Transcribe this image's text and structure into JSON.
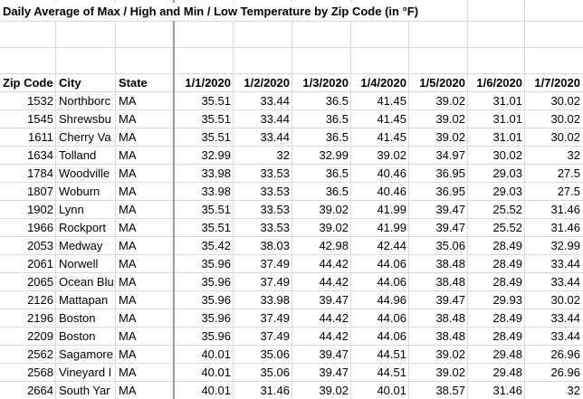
{
  "title": "Daily Average of Max / High and Min / Low Temperature by Zip Code (in °F)",
  "table": {
    "header": [
      "Zip Code",
      "City",
      "State",
      "1/1/2020",
      "1/2/2020",
      "1/3/2020",
      "1/4/2020",
      "1/5/2020",
      "1/6/2020",
      "1/7/2020"
    ],
    "rows": [
      [
        1532,
        "Northborc",
        "MA",
        35.51,
        33.44,
        36.5,
        41.45,
        39.02,
        31.01,
        30.02
      ],
      [
        1545,
        "Shrewsbu",
        "MA",
        35.51,
        33.44,
        36.5,
        41.45,
        39.02,
        31.01,
        30.02
      ],
      [
        1611,
        "Cherry Va",
        "MA",
        35.51,
        33.44,
        36.5,
        41.45,
        39.02,
        31.01,
        30.02
      ],
      [
        1634,
        "Tolland",
        "MA",
        32.99,
        32,
        32.99,
        39.02,
        34.97,
        30.02,
        32
      ],
      [
        1784,
        "Woodville",
        "MA",
        33.98,
        33.53,
        36.5,
        40.46,
        36.95,
        29.03,
        27.5
      ],
      [
        1807,
        "Woburn",
        "MA",
        33.98,
        33.53,
        36.5,
        40.46,
        36.95,
        29.03,
        27.5
      ],
      [
        1902,
        "Lynn",
        "MA",
        35.51,
        33.53,
        39.02,
        41.99,
        39.47,
        25.52,
        31.46
      ],
      [
        1966,
        "Rockport",
        "MA",
        35.51,
        33.53,
        39.02,
        41.99,
        39.47,
        25.52,
        31.46
      ],
      [
        2053,
        "Medway",
        "MA",
        35.42,
        38.03,
        42.98,
        42.44,
        35.06,
        28.49,
        32.99
      ],
      [
        2061,
        "Norwell",
        "MA",
        35.96,
        37.49,
        44.42,
        44.06,
        38.48,
        28.49,
        33.44
      ],
      [
        2065,
        "Ocean Blu",
        "MA",
        35.96,
        37.49,
        44.42,
        44.06,
        38.48,
        28.49,
        33.44
      ],
      [
        2126,
        "Mattapan",
        "MA",
        35.96,
        33.98,
        39.47,
        44.96,
        39.47,
        29.93,
        30.02
      ],
      [
        2196,
        "Boston",
        "MA",
        35.96,
        37.49,
        44.42,
        44.06,
        38.48,
        28.49,
        33.44
      ],
      [
        2209,
        "Boston",
        "MA",
        35.96,
        37.49,
        44.42,
        44.06,
        38.48,
        28.49,
        33.44
      ],
      [
        2562,
        "Sagamore",
        "MA",
        40.01,
        35.06,
        39.47,
        44.51,
        39.02,
        29.48,
        26.96
      ],
      [
        2568,
        "Vineyard I",
        "MA",
        40.01,
        35.06,
        39.47,
        44.51,
        39.02,
        29.48,
        26.96
      ],
      [
        2664,
        "South Yar",
        "MA",
        40.01,
        31.46,
        39.02,
        40.01,
        38.57,
        31.46,
        32
      ]
    ]
  }
}
